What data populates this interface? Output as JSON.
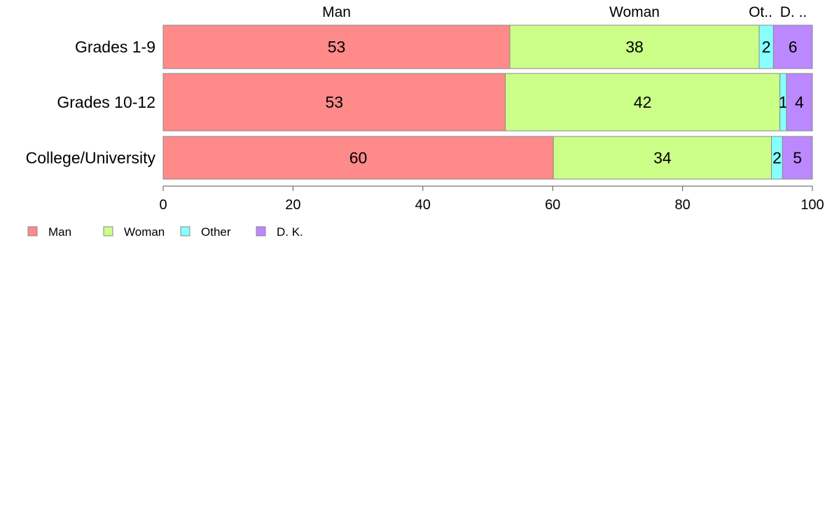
{
  "chart_data": {
    "type": "bar",
    "orientation": "horizontal",
    "stacked": true,
    "title": "",
    "xlabel": "",
    "ylabel": "",
    "xlim": [
      0,
      100
    ],
    "x_ticks": [
      "0",
      "20",
      "40",
      "60",
      "80",
      "100"
    ],
    "categories": [
      "Grades 1-9",
      "Grades 10-12",
      "College/University"
    ],
    "top_labels": [
      "Man",
      "Woman",
      "Ot..",
      "D. .."
    ],
    "series": [
      {
        "name": "Man",
        "color": "#ff8a8a",
        "values": [
          53.4,
          52.7,
          60.1
        ],
        "labels": [
          "53",
          "53",
          "60"
        ]
      },
      {
        "name": "Woman",
        "color": "#ccff88",
        "values": [
          38.4,
          42.3,
          33.6
        ],
        "labels": [
          "38",
          "42",
          "34"
        ]
      },
      {
        "name": "Other",
        "color": "#88ffff",
        "values": [
          2.2,
          1.0,
          1.7
        ],
        "labels": [
          "2",
          "1",
          "2"
        ]
      },
      {
        "name": "D. K.",
        "color": "#bb88ff",
        "values": [
          6.0,
          4.0,
          4.6
        ],
        "labels": [
          "6",
          "4",
          "5"
        ]
      }
    ],
    "legend": {
      "position": "bottom-left",
      "items": [
        "Man",
        "Woman",
        "Other",
        "D. K."
      ]
    },
    "grid": false
  }
}
